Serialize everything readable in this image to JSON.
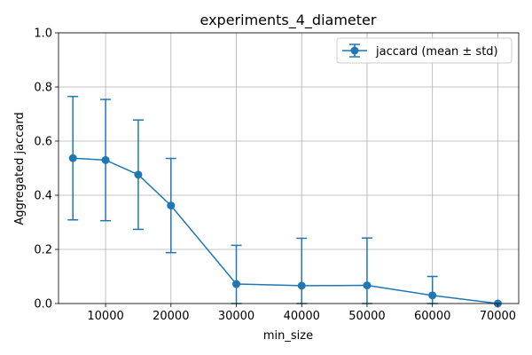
{
  "chart_data": {
    "type": "line",
    "title": "experiments_4_diameter",
    "xlabel": "min_size",
    "ylabel": "Aggregated jaccard",
    "xlim": [
      2800,
      73200
    ],
    "ylim": [
      0,
      1
    ],
    "x_ticks": [
      10000,
      20000,
      30000,
      40000,
      50000,
      60000,
      70000
    ],
    "y_ticks": [
      0.0,
      0.2,
      0.4,
      0.6,
      0.8,
      1.0
    ],
    "y_tick_labels": [
      "0.0",
      "0.2",
      "0.4",
      "0.6",
      "0.8",
      "1.0"
    ],
    "grid": true,
    "legend_position": "top-right",
    "series": [
      {
        "name": "jaccard (mean ± std)",
        "color": "#1f77b4",
        "marker": "circle",
        "error_bars": true,
        "x": [
          5000,
          10000,
          15000,
          20000,
          30000,
          40000,
          50000,
          60000,
          70000
        ],
        "y": [
          0.537,
          0.53,
          0.476,
          0.362,
          0.072,
          0.066,
          0.067,
          0.03,
          0.0
        ],
        "std": [
          0.228,
          0.224,
          0.202,
          0.174,
          0.143,
          0.175,
          0.175,
          0.07,
          0.0
        ]
      }
    ]
  }
}
